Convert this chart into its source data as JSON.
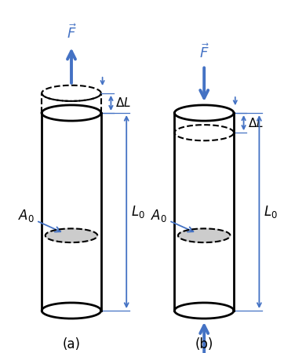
{
  "arrow_color": "#4472C4",
  "cyl_color": "black",
  "background": "white",
  "label_a": "(a)",
  "label_b": "(b)",
  "F_label": "$\\vec{F}$",
  "A0_label": "$A_0$",
  "L0_label": "$L_0$",
  "DL_label": "$\\Delta L$",
  "fig_width": 3.62,
  "fig_height": 4.5,
  "dpi": 100
}
